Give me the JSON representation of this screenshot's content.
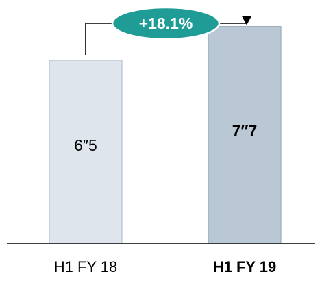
{
  "chart_data": {
    "type": "bar",
    "categories": [
      "H1 FY 18",
      "H1 FY 19"
    ],
    "values": [
      6.5,
      7.7
    ],
    "value_labels": [
      "6″​5",
      "7″​7"
    ],
    "category_bold": [
      false,
      true
    ],
    "value_bold": [
      false,
      true
    ],
    "bar_fill": [
      "#dfe5ed",
      "#b9c8d4"
    ],
    "bar_stroke": [
      "#b7c2cf",
      "#9aacbb"
    ],
    "axis_color": "#000000",
    "growth_label": "+18.1%",
    "growth_fill": "#1f9c96",
    "growth_stroke": "#ffffff",
    "growth_text_color": "#ffffff",
    "connector_color": "#000000",
    "ylim": [
      0,
      8.3
    ],
    "grid": false,
    "title": "",
    "xlabel": "",
    "ylabel": ""
  }
}
